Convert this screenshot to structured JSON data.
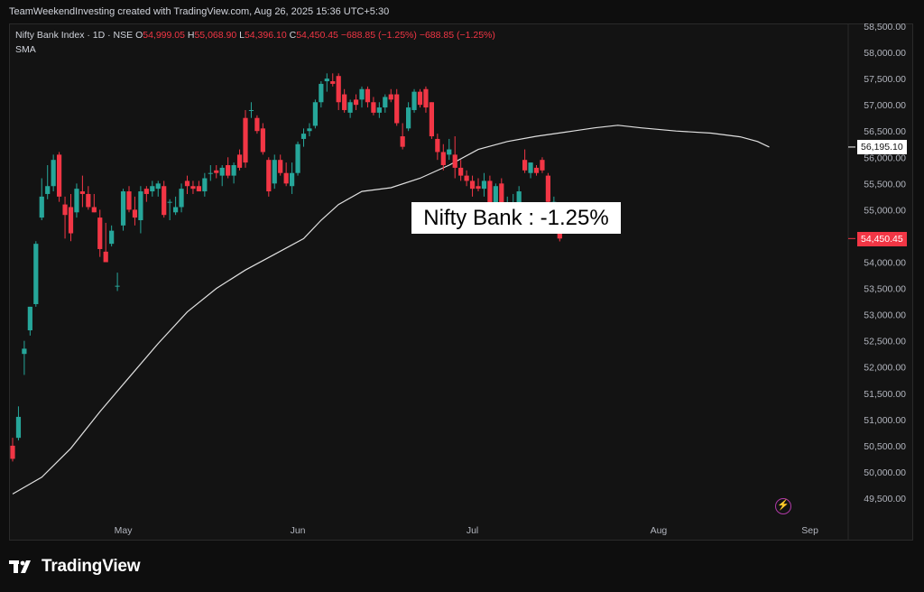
{
  "header": {
    "caption": "TeamWeekendInvesting created with TradingView.com, Aug 26, 2025 15:36 UTC+5:30"
  },
  "legend": {
    "symbol": "Nifty Bank Index · 1D · NSE",
    "o_label": "O",
    "o_value": "54,999.05",
    "h_label": "H",
    "h_value": "55,068.90",
    "l_label": "L",
    "l_value": "54,396.10",
    "c_label": "C",
    "c_value": "54,450.45",
    "change": "−688.85 (−1.25%)",
    "change2": "−688.85 (−1.25%)",
    "indicator": "SMA"
  },
  "annotation": {
    "text": "Nifty Bank : -1.25%"
  },
  "price_tags": {
    "sma": "56,195.10",
    "last": "54,450.45"
  },
  "footer": {
    "brand": "TradingView",
    "icon": "tradingview-logo-icon",
    "alert_icon": "lightning-icon"
  },
  "colors": {
    "up": "#26a69a",
    "down": "#f23645",
    "sma": "#e0e0e0",
    "background": "#131313",
    "text": "#d1d4dc"
  },
  "chart_data": {
    "type": "candlestick",
    "symbol": "Nifty Bank Index",
    "interval": "1D",
    "exchange": "NSE",
    "y_ticks": [
      49500,
      50000,
      50500,
      51000,
      51500,
      52000,
      52500,
      53000,
      53500,
      54000,
      54500,
      55000,
      55500,
      56000,
      56500,
      57000,
      57500,
      58000,
      58500
    ],
    "y_tick_labels": [
      "49,500.00",
      "50,000.00",
      "50,500.00",
      "51,000.00",
      "51,500.00",
      "52,000.00",
      "52,500.00",
      "53,000.00",
      "53,500.00",
      "54,000.00",
      "54,500.00",
      "55,000.00",
      "55,500.00",
      "56,000.00",
      "56,500.00",
      "57,000.00",
      "57,500.00",
      "58,000.00",
      "58,500.00"
    ],
    "x_labels": [
      {
        "label": "May",
        "index": 19
      },
      {
        "label": "Jun",
        "index": 49
      },
      {
        "label": "Jul",
        "index": 79
      },
      {
        "label": "Aug",
        "index": 111
      },
      {
        "label": "Sep",
        "index": 137
      }
    ],
    "candles": [
      {
        "o": 50500,
        "h": 50650,
        "l": 50200,
        "c": 50250
      },
      {
        "o": 50650,
        "h": 51250,
        "l": 50600,
        "c": 51050
      },
      {
        "o": 52250,
        "h": 52500,
        "l": 51850,
        "c": 52350
      },
      {
        "o": 52700,
        "h": 53150,
        "l": 52600,
        "c": 53150
      },
      {
        "o": 53200,
        "h": 54400,
        "l": 53150,
        "c": 54350
      },
      {
        "o": 54850,
        "h": 55600,
        "l": 54800,
        "c": 55250
      },
      {
        "o": 55300,
        "h": 55850,
        "l": 55200,
        "c": 55450
      },
      {
        "o": 55450,
        "h": 56050,
        "l": 55350,
        "c": 55950
      },
      {
        "o": 56050,
        "h": 56100,
        "l": 55150,
        "c": 55250
      },
      {
        "o": 55100,
        "h": 55250,
        "l": 54450,
        "c": 54900
      },
      {
        "o": 55050,
        "h": 55300,
        "l": 54400,
        "c": 54550
      },
      {
        "o": 54950,
        "h": 55500,
        "l": 54850,
        "c": 55400
      },
      {
        "o": 55350,
        "h": 55650,
        "l": 55050,
        "c": 55300
      },
      {
        "o": 55300,
        "h": 55450,
        "l": 55000,
        "c": 55050
      },
      {
        "o": 55050,
        "h": 55300,
        "l": 54950,
        "c": 54950
      },
      {
        "o": 54850,
        "h": 55000,
        "l": 54100,
        "c": 54250
      },
      {
        "o": 54200,
        "h": 54750,
        "l": 54050,
        "c": 54000
      },
      {
        "o": 54350,
        "h": 54700,
        "l": 54300,
        "c": 54600
      },
      {
        "o": 53550,
        "h": 53800,
        "l": 53450,
        "c": 53550
      },
      {
        "o": 54700,
        "h": 55400,
        "l": 54600,
        "c": 55350
      },
      {
        "o": 55350,
        "h": 55450,
        "l": 54950,
        "c": 55000
      },
      {
        "o": 55000,
        "h": 55250,
        "l": 54700,
        "c": 54850
      },
      {
        "o": 54800,
        "h": 55450,
        "l": 54550,
        "c": 55350
      },
      {
        "o": 55400,
        "h": 55450,
        "l": 55150,
        "c": 55300
      },
      {
        "o": 55350,
        "h": 55550,
        "l": 55250,
        "c": 55450
      },
      {
        "o": 55400,
        "h": 55550,
        "l": 55250,
        "c": 55500
      },
      {
        "o": 55450,
        "h": 55550,
        "l": 54850,
        "c": 54900
      },
      {
        "o": 55150,
        "h": 55200,
        "l": 54800,
        "c": 55150
      },
      {
        "o": 54950,
        "h": 55250,
        "l": 54900,
        "c": 55050
      },
      {
        "o": 55050,
        "h": 55500,
        "l": 54950,
        "c": 55400
      },
      {
        "o": 55550,
        "h": 55650,
        "l": 55300,
        "c": 55450
      },
      {
        "o": 55450,
        "h": 55550,
        "l": 55300,
        "c": 55400
      },
      {
        "o": 55450,
        "h": 55550,
        "l": 55350,
        "c": 55350
      },
      {
        "o": 55350,
        "h": 55700,
        "l": 55250,
        "c": 55600
      },
      {
        "o": 55700,
        "h": 55850,
        "l": 55550,
        "c": 55700
      },
      {
        "o": 55750,
        "h": 55850,
        "l": 55600,
        "c": 55700
      },
      {
        "o": 55650,
        "h": 55850,
        "l": 55450,
        "c": 55800
      },
      {
        "o": 55850,
        "h": 56000,
        "l": 55600,
        "c": 55650
      },
      {
        "o": 55650,
        "h": 55900,
        "l": 55500,
        "c": 55850
      },
      {
        "o": 56050,
        "h": 56150,
        "l": 55750,
        "c": 55800
      },
      {
        "o": 56750,
        "h": 56900,
        "l": 55800,
        "c": 55900
      },
      {
        "o": 56900,
        "h": 57050,
        "l": 56750,
        "c": 56900
      },
      {
        "o": 56750,
        "h": 56800,
        "l": 56450,
        "c": 56500
      },
      {
        "o": 56550,
        "h": 56650,
        "l": 56050,
        "c": 56100
      },
      {
        "o": 55950,
        "h": 56000,
        "l": 55250,
        "c": 55350
      },
      {
        "o": 55500,
        "h": 56050,
        "l": 55400,
        "c": 55950
      },
      {
        "o": 55950,
        "h": 56050,
        "l": 55650,
        "c": 55700
      },
      {
        "o": 55700,
        "h": 55900,
        "l": 55450,
        "c": 55500
      },
      {
        "o": 55450,
        "h": 55900,
        "l": 55300,
        "c": 55700
      },
      {
        "o": 55700,
        "h": 56300,
        "l": 55650,
        "c": 56250
      },
      {
        "o": 56350,
        "h": 56550,
        "l": 56200,
        "c": 56450
      },
      {
        "o": 56500,
        "h": 56650,
        "l": 56400,
        "c": 56550
      },
      {
        "o": 56600,
        "h": 57100,
        "l": 56550,
        "c": 57050
      },
      {
        "o": 57050,
        "h": 57450,
        "l": 56950,
        "c": 57400
      },
      {
        "o": 57450,
        "h": 57600,
        "l": 57250,
        "c": 57500
      },
      {
        "o": 57450,
        "h": 57600,
        "l": 57350,
        "c": 57400
      },
      {
        "o": 57550,
        "h": 57600,
        "l": 56900,
        "c": 57050
      },
      {
        "o": 57200,
        "h": 57300,
        "l": 56850,
        "c": 56900
      },
      {
        "o": 56850,
        "h": 57100,
        "l": 56750,
        "c": 57050
      },
      {
        "o": 57100,
        "h": 57200,
        "l": 56900,
        "c": 57000
      },
      {
        "o": 57100,
        "h": 57350,
        "l": 56950,
        "c": 57300
      },
      {
        "o": 57300,
        "h": 57350,
        "l": 56950,
        "c": 57050
      },
      {
        "o": 57050,
        "h": 57150,
        "l": 56800,
        "c": 56850
      },
      {
        "o": 56850,
        "h": 57050,
        "l": 56750,
        "c": 56950
      },
      {
        "o": 56950,
        "h": 57200,
        "l": 56850,
        "c": 57150
      },
      {
        "o": 57200,
        "h": 57300,
        "l": 57050,
        "c": 57100
      },
      {
        "o": 57200,
        "h": 57300,
        "l": 56600,
        "c": 56650
      },
      {
        "o": 56400,
        "h": 56650,
        "l": 56150,
        "c": 56200
      },
      {
        "o": 56550,
        "h": 57050,
        "l": 56500,
        "c": 56950
      },
      {
        "o": 56900,
        "h": 57300,
        "l": 56850,
        "c": 57250
      },
      {
        "o": 57250,
        "h": 57300,
        "l": 56950,
        "c": 57000
      },
      {
        "o": 57300,
        "h": 57350,
        "l": 56850,
        "c": 56950
      },
      {
        "o": 57050,
        "h": 57050,
        "l": 56350,
        "c": 56400
      },
      {
        "o": 56350,
        "h": 56450,
        "l": 55950,
        "c": 56100
      },
      {
        "o": 56100,
        "h": 56250,
        "l": 55750,
        "c": 55850
      },
      {
        "o": 56050,
        "h": 56350,
        "l": 55950,
        "c": 56150
      },
      {
        "o": 56050,
        "h": 56400,
        "l": 55600,
        "c": 55800
      },
      {
        "o": 55800,
        "h": 55950,
        "l": 55550,
        "c": 55650
      },
      {
        "o": 55650,
        "h": 55750,
        "l": 55450,
        "c": 55550
      },
      {
        "o": 55550,
        "h": 55650,
        "l": 55250,
        "c": 55400
      },
      {
        "o": 55450,
        "h": 55600,
        "l": 55350,
        "c": 55400
      },
      {
        "o": 55400,
        "h": 55700,
        "l": 55250,
        "c": 55550
      },
      {
        "o": 55550,
        "h": 55650,
        "l": 54900,
        "c": 54950
      },
      {
        "o": 55000,
        "h": 55500,
        "l": 54900,
        "c": 55450
      },
      {
        "o": 55500,
        "h": 55600,
        "l": 55000,
        "c": 55050
      },
      {
        "o": 55050,
        "h": 55250,
        "l": 55000,
        "c": 55100
      },
      {
        "o": 55100,
        "h": 55300,
        "l": 54950,
        "c": 55100
      },
      {
        "o": 55100,
        "h": 55450,
        "l": 55050,
        "c": 55350
      },
      {
        "o": 55950,
        "h": 56150,
        "l": 55700,
        "c": 55750
      },
      {
        "o": 55700,
        "h": 55900,
        "l": 55600,
        "c": 55900
      },
      {
        "o": 55800,
        "h": 55850,
        "l": 55650,
        "c": 55700
      },
      {
        "o": 55950,
        "h": 56000,
        "l": 55700,
        "c": 55750
      },
      {
        "o": 55650,
        "h": 55700,
        "l": 55100,
        "c": 55150
      },
      {
        "o": 55150,
        "h": 55250,
        "l": 55050,
        "c": 55150
      },
      {
        "o": 54999.05,
        "h": 55068.9,
        "l": 54396.1,
        "c": 54450.45
      }
    ],
    "candle_index_offset": 0,
    "sma_series": [
      [
        0,
        49580
      ],
      [
        5,
        49900
      ],
      [
        10,
        50450
      ],
      [
        15,
        51150
      ],
      [
        20,
        51800
      ],
      [
        25,
        52450
      ],
      [
        30,
        53050
      ],
      [
        35,
        53500
      ],
      [
        40,
        53850
      ],
      [
        45,
        54150
      ],
      [
        50,
        54450
      ],
      [
        53,
        54800
      ],
      [
        56,
        55100
      ],
      [
        60,
        55350
      ],
      [
        65,
        55420
      ],
      [
        70,
        55600
      ],
      [
        75,
        55850
      ],
      [
        80,
        56150
      ],
      [
        85,
        56300
      ],
      [
        90,
        56400
      ],
      [
        95,
        56480
      ],
      [
        100,
        56560
      ],
      [
        104,
        56610
      ],
      [
        108,
        56560
      ],
      [
        114,
        56500
      ],
      [
        120,
        56460
      ],
      [
        125,
        56390
      ],
      [
        128,
        56300
      ],
      [
        130,
        56195.1
      ]
    ],
    "ylim": [
      49400,
      58600
    ]
  }
}
